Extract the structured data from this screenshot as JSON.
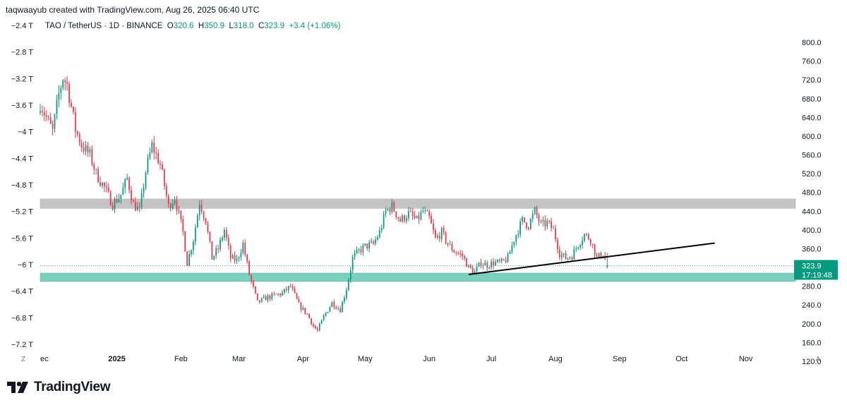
{
  "header": {
    "caption": "taqwaayub created with TradingView.com, Aug 26, 2025 06:40 UTC"
  },
  "legend": {
    "symbol": "TAO / TetherUS · 1D · BINANCE",
    "o_label": "O",
    "o_value": "320.6",
    "h_label": "H",
    "h_value": "350.9",
    "l_label": "L",
    "l_value": "318.0",
    "c_label": "C",
    "c_value": "323.9",
    "change": "+3.4 (+1.06%)"
  },
  "price_badge": {
    "price": "323.9",
    "countdown": "17:19:48",
    "color": "#089981"
  },
  "colors": {
    "up": "#089981",
    "down": "#f23645",
    "resistance_zone": "#c4c4c4",
    "support_zone": "#7ccfbf",
    "trendline": "#000000"
  },
  "axis_buttons": {
    "left": "Z",
    "right": "A"
  },
  "footer": {
    "brand": "TradingView"
  },
  "chart_data": {
    "type": "candlestick",
    "symbol": "TAO/USDT",
    "timeframe": "1D",
    "exchange": "BINANCE",
    "y_right": {
      "ticks": [
        800,
        760,
        720,
        680,
        640,
        600,
        560,
        520,
        480,
        440,
        400,
        360,
        280,
        240,
        200,
        160,
        120
      ],
      "tick_labels": [
        "800.0",
        "760.0",
        "720.0",
        "680.0",
        "640.0",
        "600.0",
        "560.0",
        "520.0",
        "480.0",
        "440.0",
        "400.0",
        "360.0",
        "280.0",
        "240.0",
        "200.0",
        "160.0",
        "120.0"
      ],
      "range": [
        120,
        800
      ]
    },
    "y_left": {
      "ticks": [
        -2.4,
        -2.8,
        -3.2,
        -3.6,
        -4.0,
        -4.4,
        -4.8,
        -5.2,
        -5.6,
        -6.0,
        -6.4,
        -6.8,
        -7.2
      ],
      "tick_labels": [
        "−2.4 T",
        "−2.8 T",
        "−3.2 T",
        "−3.6 T",
        "−4 T",
        "−4.4 T",
        "−4.8 T",
        "−5.2 T",
        "−5.6 T",
        "−6 T",
        "−6.4 T",
        "−6.8 T",
        "−7.2 T"
      ]
    },
    "x_axis": {
      "labels": [
        {
          "text": "ec",
          "date": "2024-12-01",
          "bold": false
        },
        {
          "text": "2025",
          "date": "2025-01-01",
          "bold": true
        },
        {
          "text": "Feb",
          "date": "2025-02-01",
          "bold": false
        },
        {
          "text": "Mar",
          "date": "2025-03-01",
          "bold": false
        },
        {
          "text": "Apr",
          "date": "2025-04-01",
          "bold": false
        },
        {
          "text": "May",
          "date": "2025-05-01",
          "bold": false
        },
        {
          "text": "Jun",
          "date": "2025-06-01",
          "bold": false
        },
        {
          "text": "Jul",
          "date": "2025-07-01",
          "bold": false
        },
        {
          "text": "Aug",
          "date": "2025-08-01",
          "bold": false
        },
        {
          "text": "Sep",
          "date": "2025-09-01",
          "bold": false
        },
        {
          "text": "Oct",
          "date": "2025-10-01",
          "bold": false
        },
        {
          "text": "Nov",
          "date": "2025-11-01",
          "bold": false
        }
      ],
      "range": [
        "2024-11-25",
        "2025-11-25"
      ]
    },
    "last_date": "2025-08-26",
    "anchors": [
      [
        "2024-11-25",
        670
      ],
      [
        "2024-12-01",
        610
      ],
      [
        "2024-12-04",
        690
      ],
      [
        "2024-12-06",
        725
      ],
      [
        "2024-12-08",
        710
      ],
      [
        "2024-12-12",
        615
      ],
      [
        "2024-12-15",
        580
      ],
      [
        "2024-12-19",
        560
      ],
      [
        "2024-12-22",
        520
      ],
      [
        "2024-12-26",
        490
      ],
      [
        "2024-12-30",
        455
      ],
      [
        "2025-01-03",
        475
      ],
      [
        "2025-01-06",
        510
      ],
      [
        "2025-01-09",
        455
      ],
      [
        "2025-01-12",
        440
      ],
      [
        "2025-01-15",
        525
      ],
      [
        "2025-01-18",
        580
      ],
      [
        "2025-01-22",
        540
      ],
      [
        "2025-01-26",
        450
      ],
      [
        "2025-01-29",
        470
      ],
      [
        "2025-02-02",
        395
      ],
      [
        "2025-02-04",
        330
      ],
      [
        "2025-02-07",
        380
      ],
      [
        "2025-02-10",
        460
      ],
      [
        "2025-02-13",
        420
      ],
      [
        "2025-02-16",
        340
      ],
      [
        "2025-02-19",
        360
      ],
      [
        "2025-02-22",
        400
      ],
      [
        "2025-02-25",
        340
      ],
      [
        "2025-02-28",
        335
      ],
      [
        "2025-03-03",
        370
      ],
      [
        "2025-03-06",
        305
      ],
      [
        "2025-03-10",
        245
      ],
      [
        "2025-03-14",
        255
      ],
      [
        "2025-03-18",
        260
      ],
      [
        "2025-03-22",
        265
      ],
      [
        "2025-03-26",
        280
      ],
      [
        "2025-03-30",
        240
      ],
      [
        "2025-04-03",
        220
      ],
      [
        "2025-04-06",
        195
      ],
      [
        "2025-04-08",
        185
      ],
      [
        "2025-04-11",
        215
      ],
      [
        "2025-04-15",
        245
      ],
      [
        "2025-04-19",
        230
      ],
      [
        "2025-04-22",
        275
      ],
      [
        "2025-04-25",
        340
      ],
      [
        "2025-04-28",
        355
      ],
      [
        "2025-05-01",
        365
      ],
      [
        "2025-05-05",
        370
      ],
      [
        "2025-05-08",
        395
      ],
      [
        "2025-05-11",
        440
      ],
      [
        "2025-05-14",
        450
      ],
      [
        "2025-05-18",
        420
      ],
      [
        "2025-05-22",
        435
      ],
      [
        "2025-05-26",
        420
      ],
      [
        "2025-05-29",
        440
      ],
      [
        "2025-06-01",
        425
      ],
      [
        "2025-06-04",
        380
      ],
      [
        "2025-06-07",
        395
      ],
      [
        "2025-06-10",
        370
      ],
      [
        "2025-06-13",
        355
      ],
      [
        "2025-06-17",
        345
      ],
      [
        "2025-06-20",
        320
      ],
      [
        "2025-06-23",
        310
      ],
      [
        "2025-06-26",
        330
      ],
      [
        "2025-06-29",
        325
      ],
      [
        "2025-07-02",
        330
      ],
      [
        "2025-07-06",
        330
      ],
      [
        "2025-07-09",
        340
      ],
      [
        "2025-07-12",
        380
      ],
      [
        "2025-07-16",
        420
      ],
      [
        "2025-07-19",
        410
      ],
      [
        "2025-07-22",
        440
      ],
      [
        "2025-07-25",
        410
      ],
      [
        "2025-07-28",
        415
      ],
      [
        "2025-07-31",
        400
      ],
      [
        "2025-08-03",
        350
      ],
      [
        "2025-08-06",
        340
      ],
      [
        "2025-08-09",
        345
      ],
      [
        "2025-08-12",
        370
      ],
      [
        "2025-08-15",
        390
      ],
      [
        "2025-08-18",
        380
      ],
      [
        "2025-08-21",
        340
      ],
      [
        "2025-08-24",
        350
      ],
      [
        "2025-08-26",
        323.9
      ]
    ],
    "zones": [
      {
        "name": "resistance",
        "from": 446,
        "to": 466,
        "color": "#c4c4c4"
      },
      {
        "name": "support",
        "from": 290,
        "to": 308,
        "color": "#7ccfbf"
      }
    ],
    "trendline": {
      "start": [
        "2025-06-20",
        305
      ],
      "end": [
        "2025-10-17",
        372
      ]
    },
    "last_price": 323.9
  }
}
